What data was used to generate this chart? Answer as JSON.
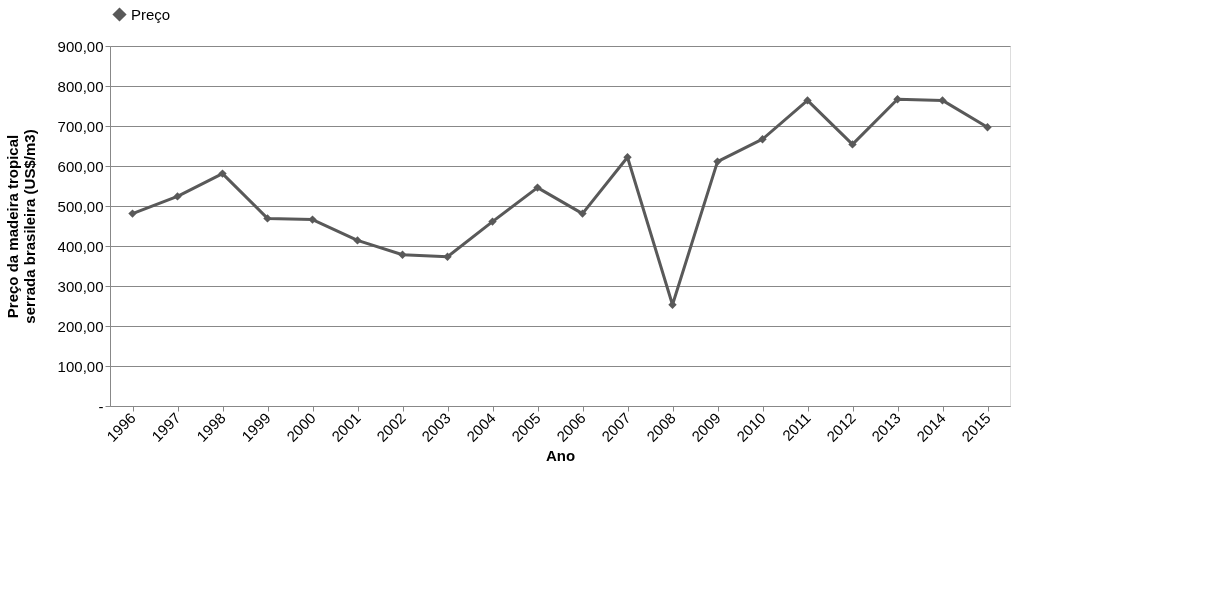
{
  "chart_data": {
    "type": "line",
    "xlabel": "Ano",
    "ylabel": "Preço da madeira tropical serrada brasileira (US$/m3)",
    "categories": [
      "1996",
      "1997",
      "1998",
      "1999",
      "2000",
      "2001",
      "2002",
      "2003",
      "2004",
      "2005",
      "2006",
      "2007",
      "2008",
      "2009",
      "2010",
      "2011",
      "2012",
      "2013",
      "2014",
      "2015"
    ],
    "series": [
      {
        "name": "Preço",
        "color": "#595959",
        "values": [
          481,
          524,
          581,
          469,
          466,
          414,
          378,
          373,
          461,
          546,
          481,
          622,
          253,
          611,
          667,
          764,
          654,
          767,
          764,
          697
        ]
      }
    ],
    "ylim": [
      0,
      900
    ],
    "yticks": [
      {
        "value": 0,
        "label": "-"
      },
      {
        "value": 100,
        "label": "100,00"
      },
      {
        "value": 200,
        "label": "200,00"
      },
      {
        "value": 300,
        "label": "300,00"
      },
      {
        "value": 400,
        "label": "400,00"
      },
      {
        "value": 500,
        "label": "500,00"
      },
      {
        "value": 600,
        "label": "600,00"
      },
      {
        "value": 700,
        "label": "700,00"
      },
      {
        "value": 800,
        "label": "800,00"
      },
      {
        "value": 900,
        "label": "900,00"
      }
    ],
    "grid": "y",
    "legend": "top",
    "marker": "diamond",
    "line_style": "solid"
  }
}
